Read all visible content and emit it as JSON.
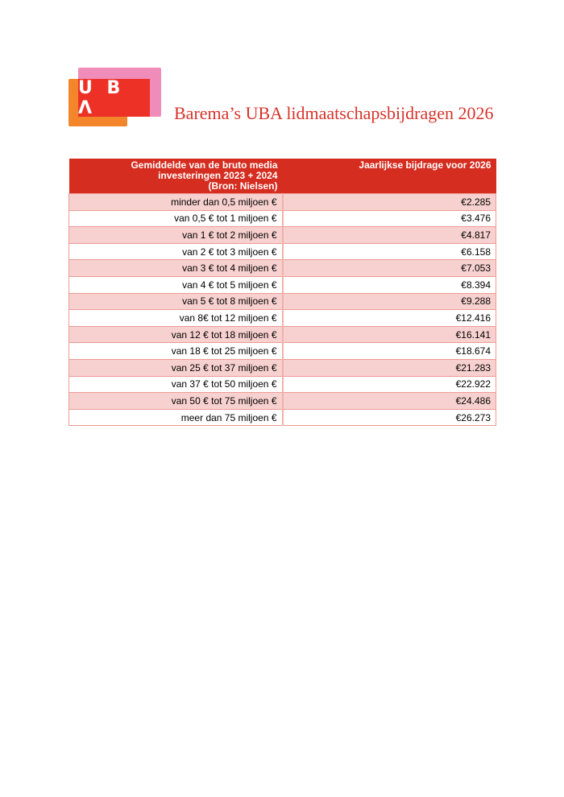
{
  "logo": {
    "text": "UBA"
  },
  "title": "Barema’s UBA  lidmaatschapsbijdragen 2026",
  "table": {
    "headers": [
      "Gemiddelde van de bruto media investeringen 2023 + 2024 (Bron: Nielsen)",
      "Jaarlijkse bijdrage voor 2026"
    ],
    "header_lines": [
      "Gemiddelde van de bruto media",
      "investeringen 2023 + 2024",
      "(Bron: Nielsen)"
    ],
    "rows": [
      [
        "minder dan 0,5 miljoen €",
        "€2.285"
      ],
      [
        "van 0,5 € tot 1 miljoen €",
        "€3.476"
      ],
      [
        "van 1 € tot 2 miljoen €",
        "€4.817"
      ],
      [
        "van 2 € tot 3 miljoen €",
        "€6.158"
      ],
      [
        "van 3 € tot 4 miljoen €",
        "€7.053"
      ],
      [
        "van 4 € tot 5 miljoen €",
        "€8.394"
      ],
      [
        "van 5 € tot 8 miljoen €",
        "€9.288"
      ],
      [
        "van  8€ tot 12 miljoen €",
        "€12.416"
      ],
      [
        "van 12 € tot 18 miljoen €",
        "€16.141"
      ],
      [
        "van 18 € tot 25 miljoen €",
        "€18.674"
      ],
      [
        "van 25 € tot 37 miljoen €",
        "€21.283"
      ],
      [
        "van 37 € tot 50 miljoen €",
        "€22.922"
      ],
      [
        "van 50 € tot 75 miljoen €",
        "€24.486"
      ],
      [
        "meer dan 75 miljoen €",
        "€26.273"
      ]
    ]
  },
  "colors": {
    "accent": "#d52d20",
    "row_alt": "#f7d1cf",
    "title": "#d7332b"
  }
}
